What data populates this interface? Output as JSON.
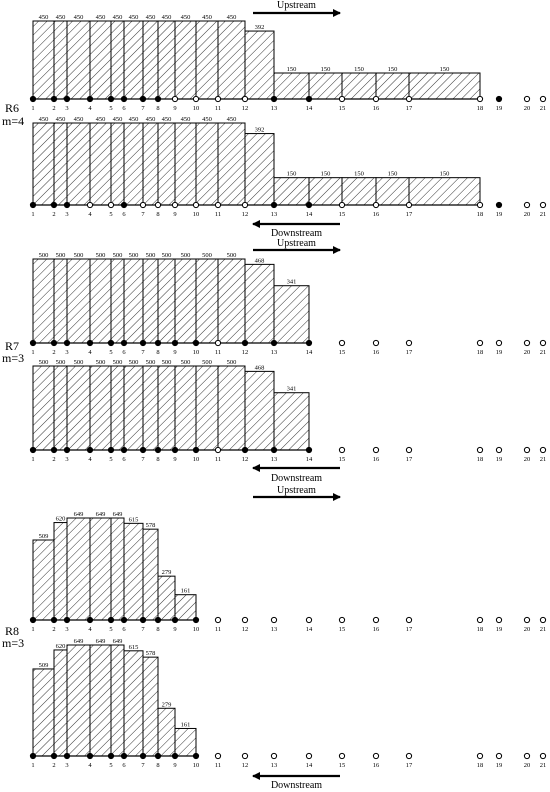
{
  "figure": {
    "node_labels": [
      "1",
      "2",
      "3",
      "4",
      "5",
      "6",
      "7",
      "8",
      "9",
      "10",
      "11",
      "12",
      "13",
      "14",
      "15",
      "16",
      "17",
      "18",
      "19",
      "20",
      "21"
    ],
    "colors": {
      "ink": "#000000",
      "paper": "#ffffff",
      "hatch": "#000000"
    },
    "icons": {
      "filled_node": "filled-circle",
      "open_node": "open-circle",
      "direction": "arrow"
    }
  },
  "panels": [
    {
      "id": "R6",
      "label": "R6",
      "m_label": "m=4",
      "rows": [
        {
          "direction": "Upstream",
          "direction_position": "top",
          "bar_values": [
            "450",
            "450",
            "450",
            "450",
            "450",
            "450",
            "450",
            "450",
            "450",
            "450",
            "450",
            "392",
            "150",
            "150",
            "150",
            "150",
            "150"
          ],
          "bar_heights": [
            450,
            450,
            450,
            450,
            450,
            450,
            450,
            450,
            450,
            450,
            450,
            392,
            150,
            150,
            150,
            150,
            150
          ],
          "node_types": [
            "filled",
            "filled",
            "filled",
            "filled",
            "filled",
            "filled",
            "filled",
            "filled",
            "open",
            "open",
            "open",
            "open",
            "filled",
            "filled",
            "open",
            "open",
            "open",
            "open",
            "filled",
            "open",
            "open"
          ]
        },
        {
          "direction": "Downstream",
          "direction_position": "bottom",
          "bar_values": [
            "450",
            "450",
            "450",
            "450",
            "450",
            "450",
            "450",
            "450",
            "450",
            "450",
            "450",
            "392",
            "150",
            "150",
            "150",
            "150",
            "150"
          ],
          "bar_heights": [
            450,
            450,
            450,
            450,
            450,
            450,
            450,
            450,
            450,
            450,
            450,
            392,
            150,
            150,
            150,
            150,
            150
          ],
          "node_types": [
            "filled",
            "filled",
            "filled",
            "open",
            "open",
            "filled",
            "open",
            "open",
            "open",
            "open",
            "open",
            "open",
            "filled",
            "filled",
            "open",
            "open",
            "open",
            "open",
            "filled",
            "open",
            "open"
          ]
        }
      ]
    },
    {
      "id": "R7",
      "label": "R7",
      "m_label": "m=3",
      "rows": [
        {
          "direction": "Upstream",
          "direction_position": "top",
          "bar_values": [
            "500",
            "500",
            "500",
            "500",
            "500",
            "500",
            "500",
            "500",
            "500",
            "500",
            "500",
            "468",
            "341"
          ],
          "bar_heights": [
            500,
            500,
            500,
            500,
            500,
            500,
            500,
            500,
            500,
            500,
            500,
            468,
            341
          ],
          "node_types": [
            "filled",
            "filled",
            "filled",
            "filled",
            "filled",
            "filled",
            "filled",
            "filled",
            "filled",
            "filled",
            "open",
            "filled",
            "filled",
            "filled",
            "open",
            "open",
            "open",
            "open",
            "open",
            "open",
            "open"
          ]
        },
        {
          "direction": "Downstream",
          "direction_position": "bottom",
          "bar_values": [
            "500",
            "500",
            "500",
            "500",
            "500",
            "500",
            "500",
            "500",
            "500",
            "500",
            "500",
            "468",
            "341"
          ],
          "bar_heights": [
            500,
            500,
            500,
            500,
            500,
            500,
            500,
            500,
            500,
            500,
            500,
            468,
            341
          ],
          "node_types": [
            "filled",
            "filled",
            "filled",
            "filled",
            "filled",
            "filled",
            "filled",
            "filled",
            "filled",
            "filled",
            "open",
            "filled",
            "filled",
            "filled",
            "open",
            "open",
            "open",
            "open",
            "open",
            "open",
            "open"
          ]
        }
      ]
    },
    {
      "id": "R8",
      "label": "R8",
      "m_label": "m=3",
      "rows": [
        {
          "direction": "Upstream",
          "direction_position": "top",
          "bar_values": [
            "509",
            "620",
            "649",
            "649",
            "649",
            "615",
            "578",
            "279",
            "161"
          ],
          "bar_heights": [
            509,
            620,
            649,
            649,
            649,
            615,
            578,
            279,
            161
          ],
          "node_types": [
            "filled",
            "filled",
            "filled",
            "filled",
            "filled",
            "filled",
            "filled",
            "filled",
            "filled",
            "filled",
            "open",
            "open",
            "open",
            "open",
            "open",
            "open",
            "open",
            "open",
            "open",
            "open",
            "open"
          ]
        },
        {
          "direction": "Downstream",
          "direction_position": "bottom",
          "bar_values": [
            "509",
            "620",
            "649",
            "649",
            "649",
            "615",
            "578",
            "279",
            "161"
          ],
          "bar_heights": [
            509,
            620,
            649,
            649,
            649,
            615,
            578,
            279,
            161
          ],
          "node_types": [
            "filled",
            "filled",
            "filled",
            "filled",
            "filled",
            "filled",
            "filled",
            "filled",
            "filled",
            "filled",
            "open",
            "open",
            "open",
            "open",
            "open",
            "open",
            "open",
            "open",
            "open",
            "open",
            "open"
          ]
        }
      ]
    }
  ]
}
